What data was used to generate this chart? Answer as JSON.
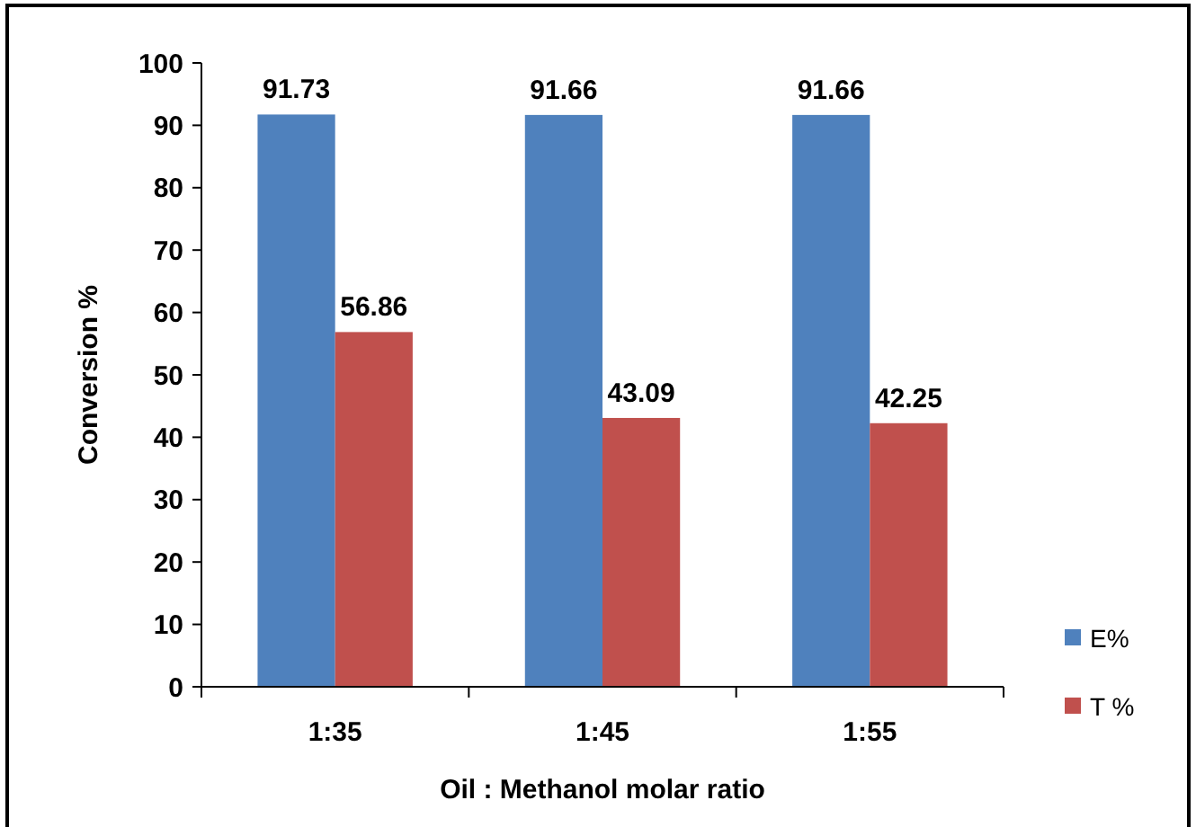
{
  "chart_data": {
    "type": "bar",
    "xlabel": "Oil : Methanol molar ratio",
    "ylabel": "Conversion %",
    "categories": [
      "1:35",
      "1:45",
      "1:55"
    ],
    "series": [
      {
        "name": "E%",
        "color": "#4f81bd",
        "values": [
          91.73,
          91.66,
          91.66
        ]
      },
      {
        "name": "T %",
        "color": "#c0504d",
        "values": [
          56.86,
          43.09,
          42.25
        ]
      }
    ],
    "ylim": [
      0,
      100
    ],
    "yticks": [
      0,
      10,
      20,
      30,
      40,
      50,
      60,
      70,
      80,
      90,
      100
    ],
    "grid": false,
    "legend": "right",
    "data_labels": true
  }
}
